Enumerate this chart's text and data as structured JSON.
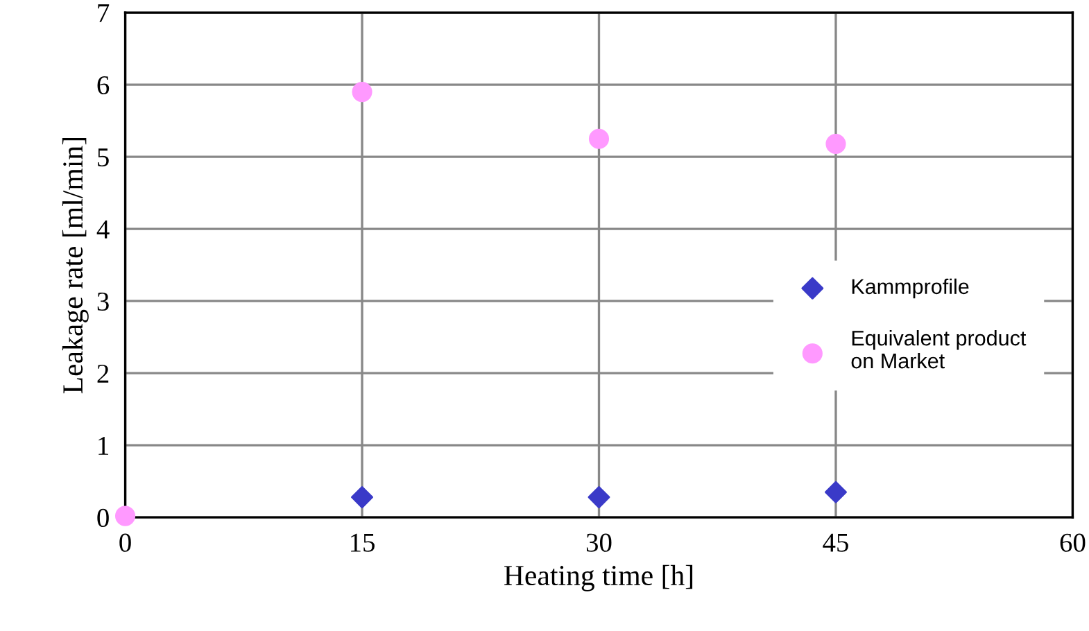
{
  "chart_data": {
    "type": "scatter",
    "xlabel": "Heating time [h]",
    "ylabel": "Leakage rate [ml/min]",
    "series": [
      {
        "name": "Kammprofile",
        "color": "#3a3ac8",
        "marker": "diamond",
        "x": [
          15,
          30,
          45
        ],
        "values": [
          0.28,
          0.28,
          0.35
        ]
      },
      {
        "name": "Equivalent product\non Market",
        "color": "#ff99ff",
        "marker": "circle",
        "x": [
          0,
          15,
          30,
          45
        ],
        "values": [
          0.02,
          5.9,
          5.25,
          5.18
        ]
      }
    ],
    "xlim": [
      0,
      60
    ],
    "xticks": [
      0,
      15,
      30,
      45,
      60
    ],
    "ylim": [
      0,
      7
    ],
    "yticks": [
      0,
      1,
      2,
      3,
      4,
      5,
      6,
      7
    ],
    "grid": true,
    "legend": "right"
  }
}
